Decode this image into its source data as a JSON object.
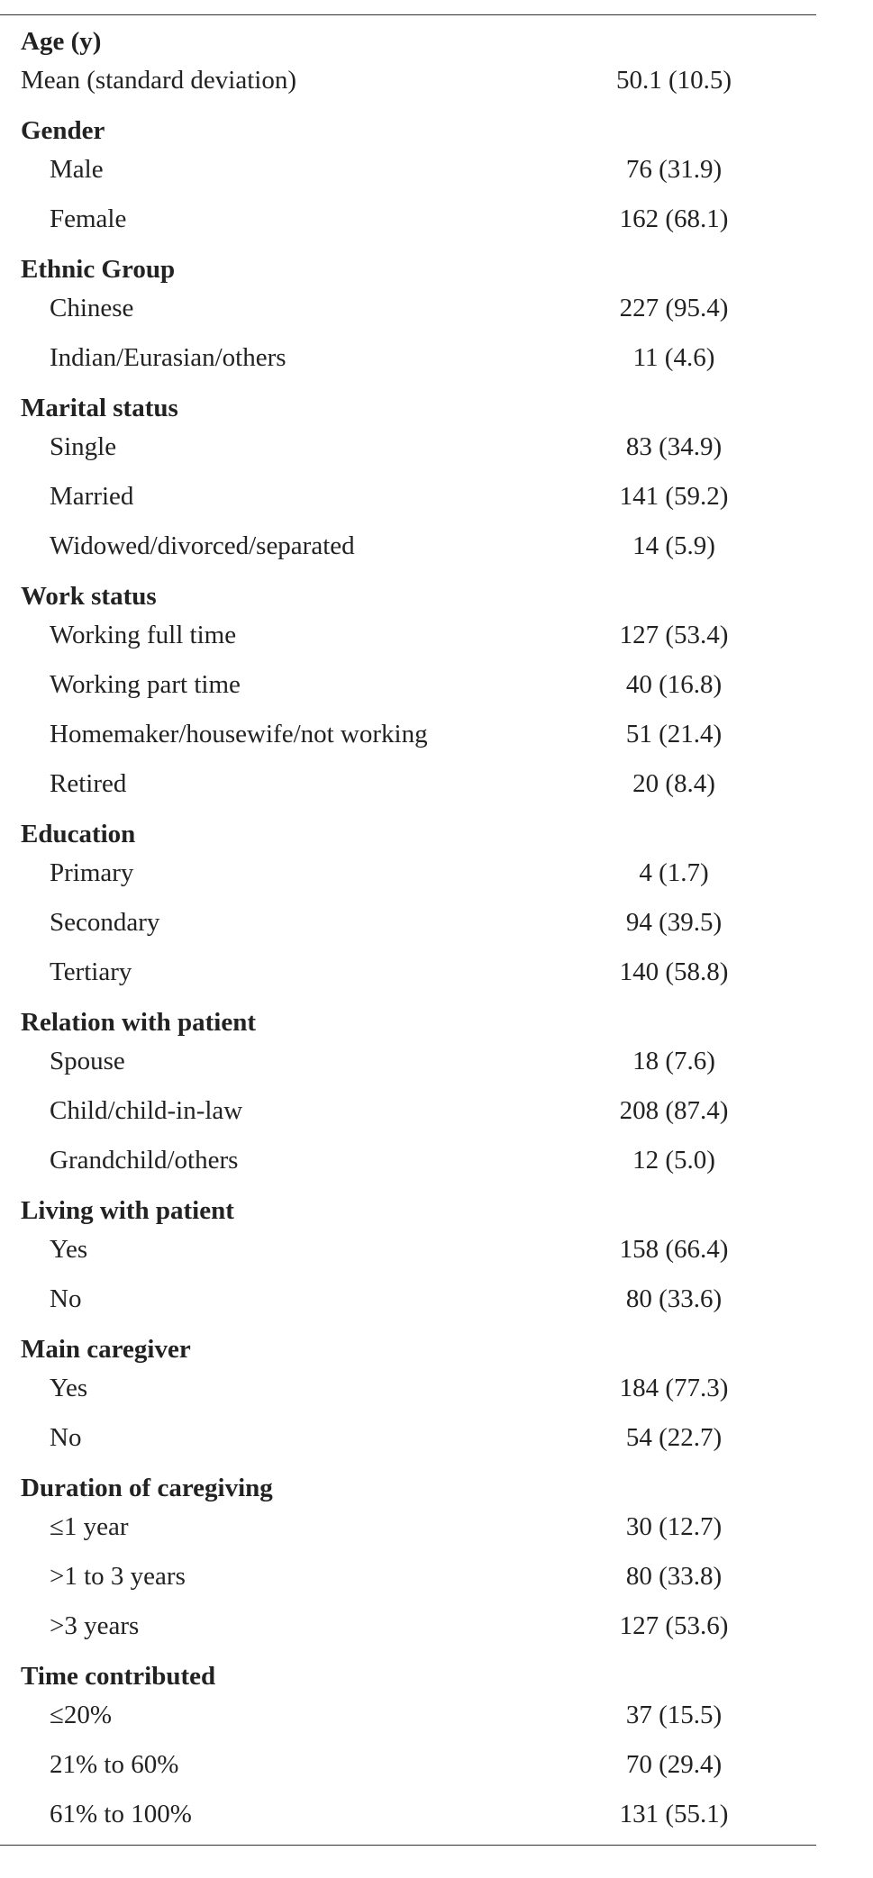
{
  "table": {
    "groups": [
      {
        "title": "Age (y)",
        "rows": [
          {
            "label": "Mean (standard deviation)",
            "value": "50.1 (10.5)"
          }
        ]
      },
      {
        "title": "Gender",
        "rows": [
          {
            "label": "Male",
            "value": "76 (31.9)"
          },
          {
            "label": "Female",
            "value": "162 (68.1)"
          }
        ]
      },
      {
        "title": "Ethnic Group",
        "rows": [
          {
            "label": "Chinese",
            "value": "227 (95.4)"
          },
          {
            "label": "Indian/Eurasian/others",
            "value": "11 (4.6)"
          }
        ]
      },
      {
        "title": "Marital status",
        "rows": [
          {
            "label": "Single",
            "value": "83 (34.9)"
          },
          {
            "label": "Married",
            "value": "141 (59.2)"
          },
          {
            "label": "Widowed/divorced/separated",
            "value": "14 (5.9)"
          }
        ]
      },
      {
        "title": "Work status",
        "rows": [
          {
            "label": "Working full time",
            "value": "127 (53.4)"
          },
          {
            "label": "Working part time",
            "value": "40 (16.8)"
          },
          {
            "label": "Homemaker/housewife/not working",
            "value": "51 (21.4)"
          },
          {
            "label": "Retired",
            "value": "20 (8.4)"
          }
        ]
      },
      {
        "title": "Education",
        "rows": [
          {
            "label": "Primary",
            "value": "4 (1.7)"
          },
          {
            "label": "Secondary",
            "value": "94 (39.5)"
          },
          {
            "label": "Tertiary",
            "value": "140 (58.8)"
          }
        ]
      },
      {
        "title": "Relation with patient",
        "rows": [
          {
            "label": "Spouse",
            "value": "18 (7.6)"
          },
          {
            "label": "Child/child-in-law",
            "value": "208 (87.4)"
          },
          {
            "label": "Grandchild/others",
            "value": "12 (5.0)"
          }
        ]
      },
      {
        "title": "Living with patient",
        "rows": [
          {
            "label": "Yes",
            "value": "158 (66.4)"
          },
          {
            "label": "No",
            "value": "80 (33.6)"
          }
        ]
      },
      {
        "title": "Main caregiver",
        "rows": [
          {
            "label": "Yes",
            "value": "184 (77.3)"
          },
          {
            "label": "No",
            "value": "54 (22.7)"
          }
        ]
      },
      {
        "title": "Duration of caregiving",
        "rows": [
          {
            "label": "≤1 year",
            "value": "30 (12.7)"
          },
          {
            "label": ">1 to 3 years",
            "value": "80 (33.8)"
          },
          {
            "label": ">3 years",
            "value": "127 (53.6)"
          }
        ]
      },
      {
        "title": "Time contributed",
        "rows": [
          {
            "label": "≤20%",
            "value": "37 (15.5)"
          },
          {
            "label": "21% to 60%",
            "value": "70 (29.4)"
          },
          {
            "label": "61% to 100%",
            "value": "131 (55.1)"
          }
        ]
      }
    ]
  }
}
